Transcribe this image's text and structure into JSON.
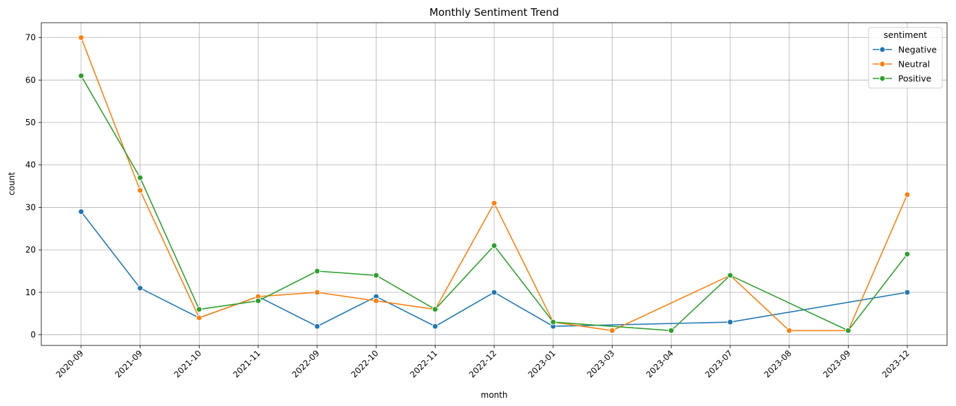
{
  "chart_data": {
    "type": "line",
    "title": "Monthly Sentiment Trend",
    "xlabel": "month",
    "ylabel": "count",
    "ylim": [
      -2.5,
      73.5
    ],
    "yticks": [
      0,
      10,
      20,
      30,
      40,
      50,
      60,
      70
    ],
    "grid": true,
    "legend": {
      "title": "sentiment",
      "placement": "top-right"
    },
    "categories": [
      "2020-09",
      "2021-09",
      "2021-10",
      "2021-11",
      "2022-09",
      "2022-10",
      "2022-11",
      "2022-12",
      "2023-01",
      "2023-03",
      "2023-04",
      "2023-07",
      "2023-08",
      "2023-09",
      "2023-12"
    ],
    "series": [
      {
        "name": "Negative",
        "color": "#1f77b4",
        "points": [
          {
            "x": "2020-09",
            "y": 29
          },
          {
            "x": "2021-09",
            "y": 11
          },
          {
            "x": "2021-10",
            "y": 4
          },
          {
            "x": "2021-11",
            "y": 9
          },
          {
            "x": "2022-09",
            "y": 2
          },
          {
            "x": "2022-10",
            "y": 9
          },
          {
            "x": "2022-11",
            "y": 2
          },
          {
            "x": "2022-12",
            "y": 10
          },
          {
            "x": "2023-01",
            "y": 2
          },
          {
            "x": "2023-07",
            "y": 3
          },
          {
            "x": "2023-12",
            "y": 10
          }
        ]
      },
      {
        "name": "Neutral",
        "color": "#ff7f0e",
        "points": [
          {
            "x": "2020-09",
            "y": 70
          },
          {
            "x": "2021-09",
            "y": 34
          },
          {
            "x": "2021-10",
            "y": 4
          },
          {
            "x": "2021-11",
            "y": 9
          },
          {
            "x": "2022-09",
            "y": 10
          },
          {
            "x": "2022-10",
            "y": 8
          },
          {
            "x": "2022-11",
            "y": 6
          },
          {
            "x": "2022-12",
            "y": 31
          },
          {
            "x": "2023-01",
            "y": 3
          },
          {
            "x": "2023-03",
            "y": 1
          },
          {
            "x": "2023-07",
            "y": 14
          },
          {
            "x": "2023-08",
            "y": 1
          },
          {
            "x": "2023-09",
            "y": 1
          },
          {
            "x": "2023-12",
            "y": 33
          }
        ]
      },
      {
        "name": "Positive",
        "color": "#2ca02c",
        "points": [
          {
            "x": "2020-09",
            "y": 61
          },
          {
            "x": "2021-09",
            "y": 37
          },
          {
            "x": "2021-10",
            "y": 6
          },
          {
            "x": "2021-11",
            "y": 8
          },
          {
            "x": "2022-09",
            "y": 15
          },
          {
            "x": "2022-10",
            "y": 14
          },
          {
            "x": "2022-11",
            "y": 6
          },
          {
            "x": "2022-12",
            "y": 21
          },
          {
            "x": "2023-01",
            "y": 3
          },
          {
            "x": "2023-04",
            "y": 1
          },
          {
            "x": "2023-07",
            "y": 14
          },
          {
            "x": "2023-09",
            "y": 1
          },
          {
            "x": "2023-12",
            "y": 19
          }
        ]
      }
    ]
  }
}
